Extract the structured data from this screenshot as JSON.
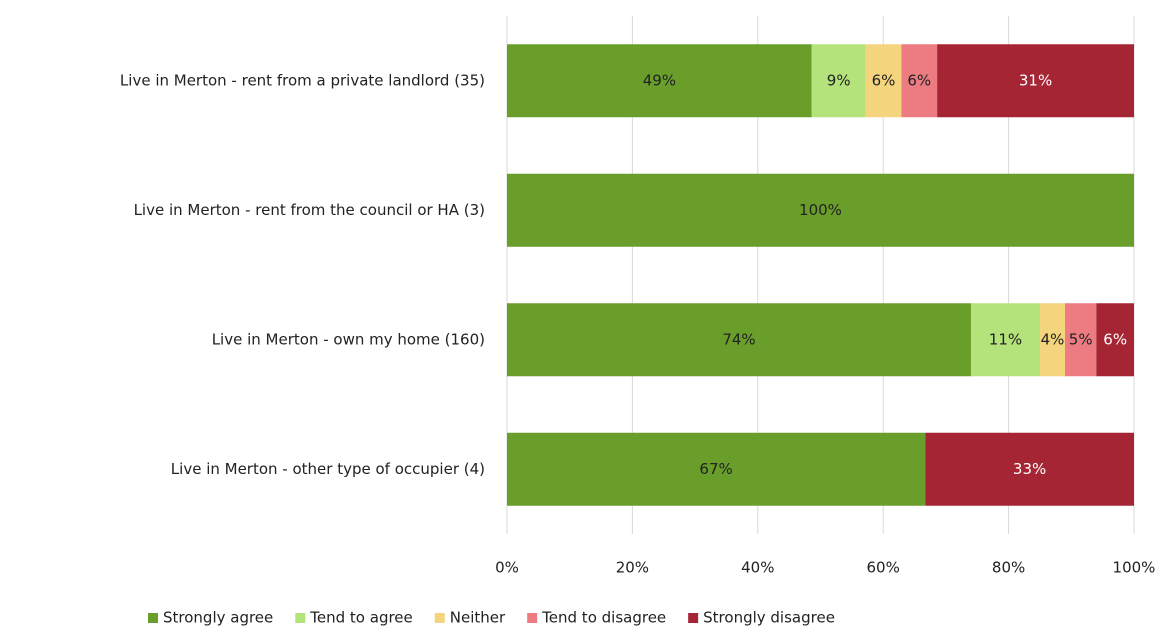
{
  "chart_data": {
    "type": "stacked-bar-horizontal",
    "categories": [
      "Live in Merton - rent from a private landlord (35)",
      "Live in Merton - rent from the council or HA (3)",
      "Live in Merton - own my home (160)",
      "Live in Merton - other type of occupier (4)"
    ],
    "series": [
      {
        "name": "Strongly agree",
        "color": "#6a9e2a",
        "values": [
          48.6,
          100,
          74,
          66.7
        ],
        "value_labels": [
          "49%",
          "100%",
          "74%",
          "67%"
        ]
      },
      {
        "name": "Tend to agree",
        "color": "#b4e37b",
        "values": [
          8.6,
          0,
          11,
          0
        ],
        "value_labels": [
          "9%",
          null,
          "11%",
          null
        ]
      },
      {
        "name": "Neither",
        "color": "#f5d47e",
        "values": [
          5.7,
          0,
          4,
          0
        ],
        "value_labels": [
          "6%",
          null,
          "4%",
          null
        ]
      },
      {
        "name": "Tend to disagree",
        "color": "#ec7b82",
        "values": [
          5.7,
          0,
          5,
          0
        ],
        "value_labels": [
          "6%",
          null,
          "5%",
          null
        ]
      },
      {
        "name": "Strongly disagree",
        "color": "#a52535",
        "values": [
          31.4,
          0,
          6,
          33.3
        ],
        "value_labels": [
          "31%",
          null,
          "6%",
          "33%"
        ]
      }
    ],
    "xlim": [
      0,
      100
    ],
    "xticks": [
      {
        "value": 0,
        "label": "0%"
      },
      {
        "value": 20,
        "label": "20%"
      },
      {
        "value": 40,
        "label": "40%"
      },
      {
        "value": 60,
        "label": "60%"
      },
      {
        "value": 80,
        "label": "80%"
      },
      {
        "value": 100,
        "label": "100%"
      }
    ],
    "grid": true,
    "legend": "bottom"
  }
}
